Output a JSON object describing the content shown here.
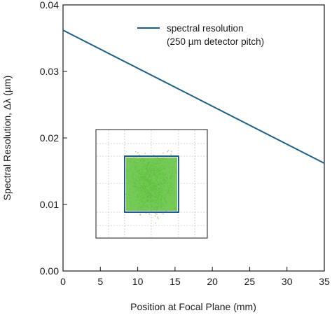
{
  "chart_data": {
    "type": "line",
    "xlabel": "Position at Focal Plane (mm)",
    "ylabel": "Spectral Resolution, Δλ (µm)",
    "xlim": [
      0,
      35
    ],
    "ylim": [
      0,
      0.04
    ],
    "x_ticks": [
      "0",
      "5",
      "10",
      "15",
      "20",
      "25",
      "30",
      "35"
    ],
    "y_ticks": [
      "0.00",
      "0.01",
      "0.02",
      "0.03",
      "0.04"
    ],
    "grid": false,
    "legend_position": "top-right",
    "series": [
      {
        "name": "spectral resolution",
        "name_line2": "(250 µm detector pitch)",
        "color": "#1f5f87",
        "x": [
          0,
          35
        ],
        "y": [
          0.0362,
          0.0162
        ]
      }
    ],
    "inset": {
      "description_color": "#5cbf3a",
      "border_color": "#1f5f87"
    }
  }
}
